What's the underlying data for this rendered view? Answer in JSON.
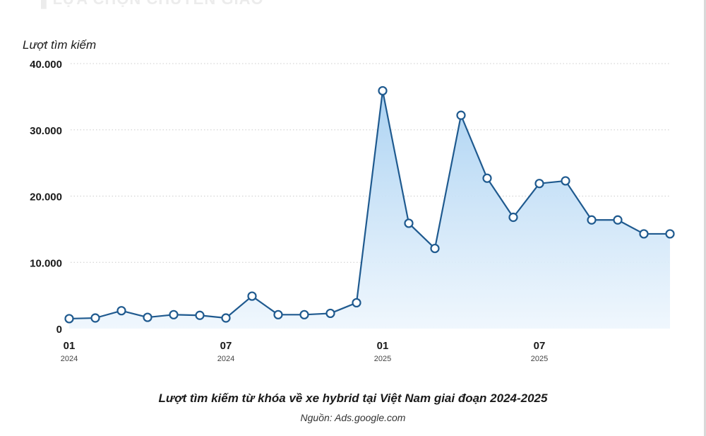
{
  "header_fragment": "▌LỰA CHỌN CHUYỂN GIAO",
  "caption": "Lượt tìm kiếm từ khóa về xe hybrid tại Việt Nam giai đoạn 2024-2025",
  "source": "Nguồn: Ads.google.com",
  "colors": {
    "line": "#1f5a8f",
    "area_top": "#a9d1f2",
    "area_bottom": "#eef6fd",
    "grid": "#cccccc",
    "text": "#1a1a1a"
  },
  "chart_data": {
    "type": "area",
    "ylabel": "Lượt tìm kiếm",
    "ylim": [
      0,
      40000
    ],
    "yticks": [
      {
        "value": 0,
        "label": "0"
      },
      {
        "value": 10000,
        "label": "10.000"
      },
      {
        "value": 20000,
        "label": "20.000"
      },
      {
        "value": 30000,
        "label": "30.000"
      },
      {
        "value": 40000,
        "label": "40.000"
      }
    ],
    "xticks": [
      {
        "index": 0,
        "month": "01",
        "year": "2024"
      },
      {
        "index": 6,
        "month": "07",
        "year": "2024"
      },
      {
        "index": 12,
        "month": "01",
        "year": "2025"
      },
      {
        "index": 18,
        "month": "07",
        "year": "2025"
      }
    ],
    "x": [
      "2024-01",
      "2024-02",
      "2024-03",
      "2024-04",
      "2024-05",
      "2024-06",
      "2024-07",
      "2024-08",
      "2024-09",
      "2024-10",
      "2024-11",
      "2024-12",
      "2025-01",
      "2025-02",
      "2025-03",
      "2025-04",
      "2025-05",
      "2025-06",
      "2025-07",
      "2025-08",
      "2025-09",
      "2025-10",
      "2025-11",
      "2025-12"
    ],
    "values": [
      1500,
      1600,
      2700,
      1700,
      2100,
      2000,
      1600,
      4900,
      2100,
      2100,
      2300,
      3900,
      35900,
      15900,
      12100,
      32200,
      22700,
      16800,
      21900,
      22300,
      16400,
      16400,
      14300,
      14300
    ],
    "grid": true,
    "legend": "none"
  }
}
